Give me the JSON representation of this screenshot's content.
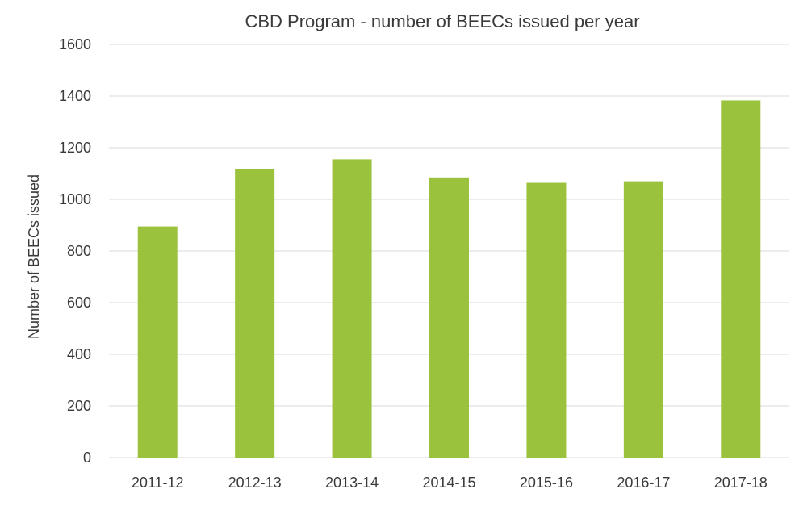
{
  "colors": {
    "bar": "#9bc23c",
    "gridline": "#d9d9d9",
    "text": "#3a3a3a"
  },
  "chart_data": {
    "type": "bar",
    "title": "CBD Program - number of BEECs issued per year",
    "xlabel": "",
    "ylabel": "Number of BEECs issued",
    "categories": [
      "2011-12",
      "2012-13",
      "2013-14",
      "2014-15",
      "2015-16",
      "2016-17",
      "2017-18"
    ],
    "values": [
      895,
      1117,
      1155,
      1085,
      1064,
      1070,
      1383
    ],
    "ylim": [
      0,
      1600
    ],
    "yticks": [
      0,
      200,
      400,
      600,
      800,
      1000,
      1200,
      1400,
      1600
    ],
    "grid": true,
    "legend": "none"
  }
}
